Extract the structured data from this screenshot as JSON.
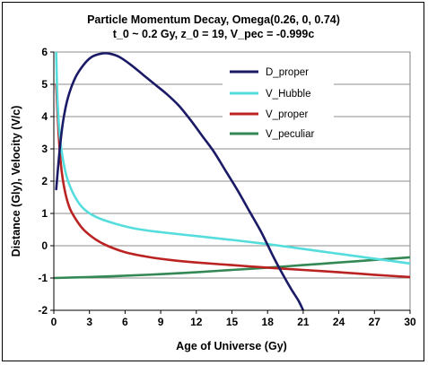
{
  "chart_data": {
    "type": "line",
    "title": "Particle Momentum Decay, Omega(0.26, 0, 0.74)",
    "subtitle": "t_0 ~ 0.2 Gy, z_0 = 19, V_pec = -0.999c",
    "xlabel": "Age of Universe (Gy)",
    "ylabel": "Distance (Gly), Velocity (V/c)",
    "xlim": [
      0,
      30
    ],
    "ylim": [
      -2,
      6
    ],
    "xticks": [
      0,
      3,
      6,
      9,
      12,
      15,
      18,
      21,
      24,
      27,
      30
    ],
    "yticks": [
      -2,
      -1,
      0,
      1,
      2,
      3,
      4,
      5,
      6
    ],
    "grid": "horizontal",
    "legend_position": "top-right",
    "series": [
      {
        "name": "D_proper",
        "color": "#1a1a66",
        "x": [
          0.2,
          0.5,
          0.8,
          1.2,
          1.8,
          2.5,
          3.2,
          4.0,
          4.7,
          5.5,
          6.5,
          7.5,
          8.5,
          9.5,
          10.5,
          11.5,
          12.5,
          13.5,
          14.5,
          15.5,
          16.5,
          17.5,
          18.5,
          19.3,
          20.0,
          20.6,
          21.0
        ],
        "y": [
          1.75,
          3.0,
          3.9,
          4.6,
          5.2,
          5.6,
          5.85,
          5.95,
          5.95,
          5.85,
          5.6,
          5.3,
          5.0,
          4.7,
          4.35,
          3.9,
          3.4,
          2.9,
          2.3,
          1.7,
          1.05,
          0.4,
          -0.35,
          -0.9,
          -1.35,
          -1.7,
          -2.0
        ]
      },
      {
        "name": "V_Hubble",
        "color": "#55dddd",
        "x": [
          0.2,
          0.3,
          0.5,
          0.8,
          1.2,
          1.8,
          2.5,
          3.5,
          5,
          7,
          9,
          12,
          15,
          18,
          21,
          24,
          27,
          30
        ],
        "y": [
          6.0,
          4.6,
          3.4,
          2.6,
          2.0,
          1.5,
          1.15,
          0.9,
          0.7,
          0.52,
          0.42,
          0.3,
          0.18,
          0.05,
          -0.1,
          -0.25,
          -0.4,
          -0.55
        ]
      },
      {
        "name": "V_proper",
        "color": "#bb2222",
        "x": [
          0.2,
          0.4,
          0.6,
          0.9,
          1.3,
          1.8,
          2.5,
          3.5,
          4.5,
          6,
          8,
          10,
          12,
          15,
          18,
          21,
          24,
          27,
          30
        ],
        "y": [
          5.0,
          3.5,
          2.5,
          1.75,
          1.2,
          0.85,
          0.5,
          0.2,
          0.0,
          -0.2,
          -0.35,
          -0.45,
          -0.52,
          -0.6,
          -0.68,
          -0.75,
          -0.82,
          -0.9,
          -0.97
        ]
      },
      {
        "name": "V_peculiar",
        "color": "#338855",
        "x": [
          0.0,
          3,
          6,
          9,
          12,
          15,
          18,
          21,
          24,
          27,
          30
        ],
        "y": [
          -1.0,
          -0.97,
          -0.93,
          -0.88,
          -0.82,
          -0.75,
          -0.68,
          -0.6,
          -0.52,
          -0.44,
          -0.36
        ]
      }
    ]
  }
}
